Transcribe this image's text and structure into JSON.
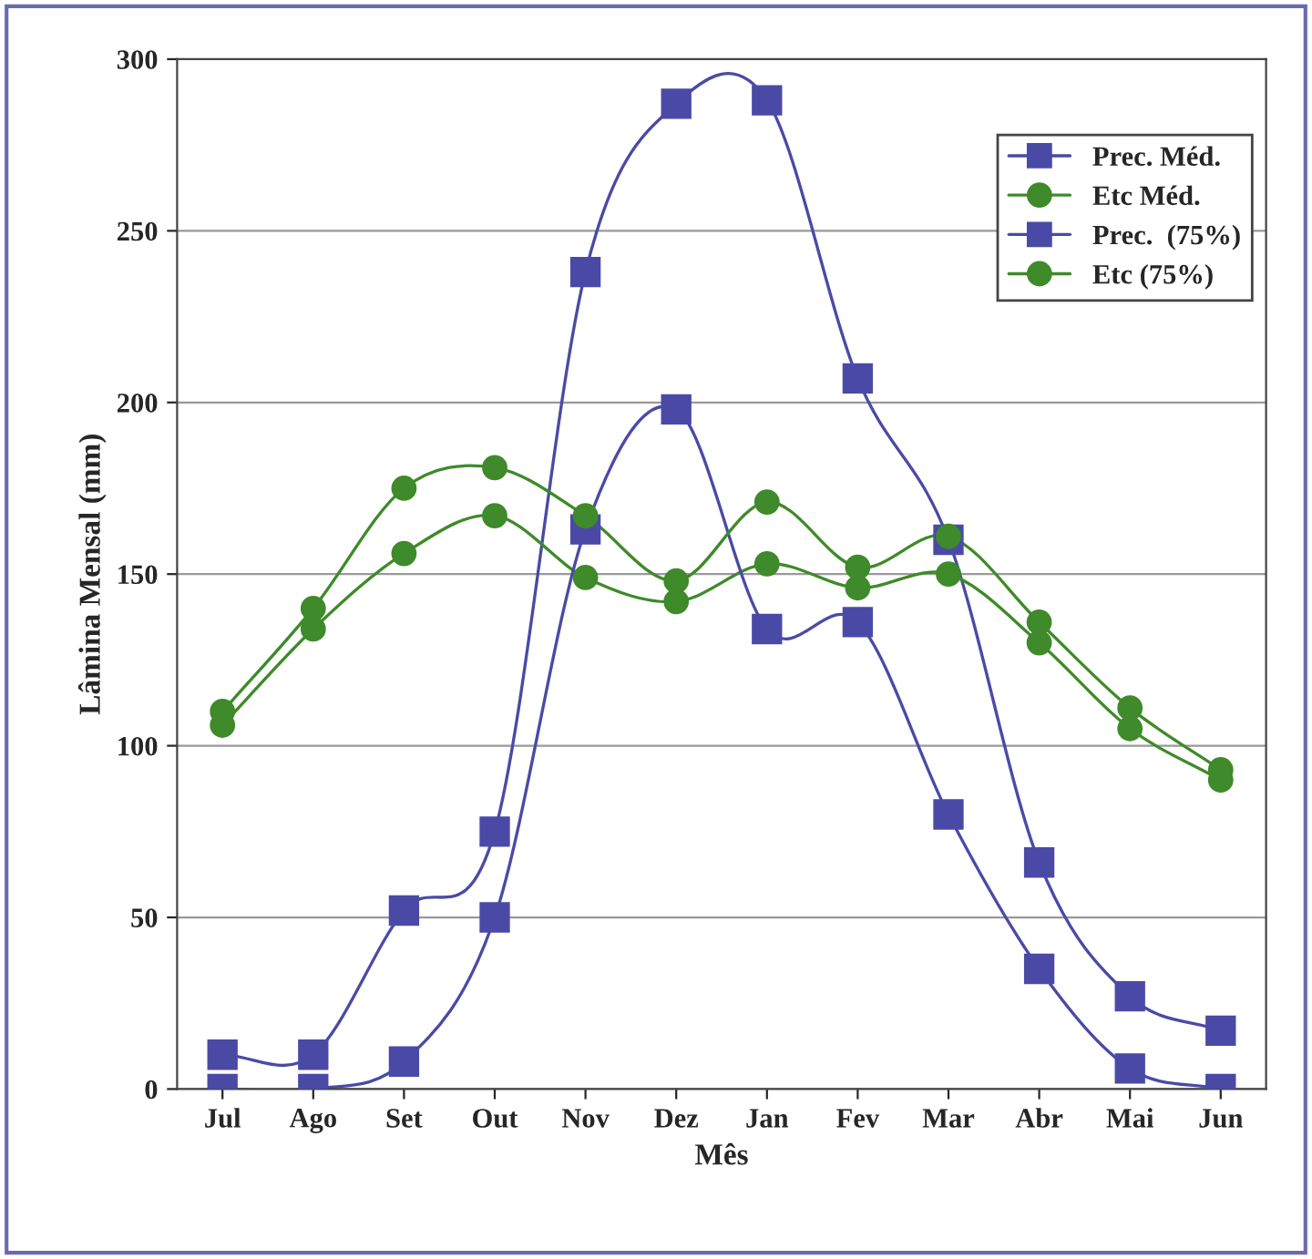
{
  "chart_data": {
    "type": "line",
    "xlabel": "Mês",
    "ylabel": "Lâmina Mensal (mm)",
    "categories": [
      "Jul",
      "Ago",
      "Set",
      "Out",
      "Nov",
      "Dez",
      "Jan",
      "Fev",
      "Mar",
      "Abr",
      "Mai",
      "Jun"
    ],
    "series": [
      {
        "name": "Prec. Méd.",
        "color": "#4a4aa6",
        "marker": "square",
        "values": [
          10,
          10,
          52,
          75,
          238,
          287,
          288,
          207,
          160,
          66,
          27,
          17
        ]
      },
      {
        "name": "Etc Méd.",
        "color": "#3f8a2a",
        "marker": "circle",
        "values": [
          106,
          134,
          156,
          167,
          149,
          142,
          153,
          146,
          150,
          130,
          105,
          90
        ]
      },
      {
        "name": "Prec.  (75%)",
        "color": "#4a4aa6",
        "marker": "square",
        "values": [
          0,
          0,
          8,
          50,
          163,
          198,
          134,
          136,
          80,
          35,
          6,
          0
        ]
      },
      {
        "name": "Etc (75%)",
        "color": "#3f8a2a",
        "marker": "circle",
        "values": [
          110,
          140,
          175,
          181,
          167,
          148,
          171,
          152,
          161,
          136,
          111,
          93
        ]
      }
    ],
    "ylim": [
      0,
      300
    ],
    "yticks": [
      0,
      50,
      100,
      150,
      200,
      250,
      300
    ],
    "grid": "y",
    "legend": "top right"
  }
}
